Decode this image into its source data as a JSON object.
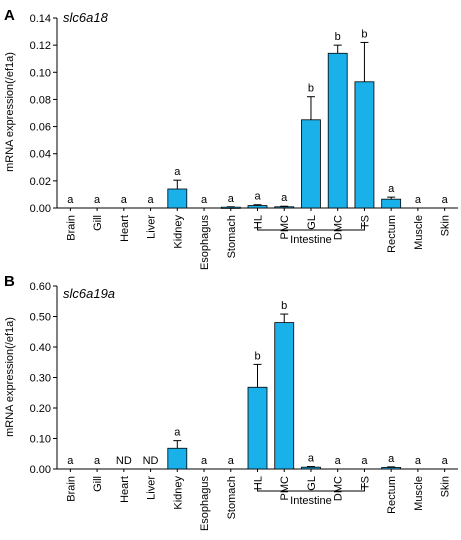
{
  "colors": {
    "bar": "#1ab0ea",
    "axis": "#000000"
  },
  "chart_data": [
    {
      "type": "bar",
      "panel": "A",
      "title": "slc6a18",
      "ylabel": "mRNA expression(/ef1a)",
      "ylim": [
        0,
        0.14
      ],
      "yticks": [
        "0.00",
        "0.02",
        "0.04",
        "0.06",
        "0.08",
        "0.10",
        "0.12",
        "0.14"
      ],
      "categories": [
        "Brain",
        "Gill",
        "Heart",
        "Liver",
        "Kidney",
        "Esophagus",
        "Stomach",
        "HL",
        "PMC",
        "GL",
        "DMC",
        "TS",
        "Rectum",
        "Muscle",
        "Skin"
      ],
      "values": [
        0,
        0,
        0,
        0,
        0.014,
        0,
        0.0006,
        0.0018,
        0.0009,
        0.065,
        0.114,
        0.093,
        0.0065,
        0,
        0
      ],
      "errors": [
        0,
        0,
        0,
        0,
        0.0065,
        0,
        0.0003,
        0.0006,
        0.0004,
        0.017,
        0.006,
        0.029,
        0.0015,
        0,
        0
      ],
      "labels": [
        "a",
        "a",
        "a",
        "a",
        "a",
        "a",
        "a",
        "a",
        "a",
        "b",
        "b",
        "b",
        "a",
        "a",
        "a"
      ],
      "group_label": "Intestine"
    },
    {
      "type": "bar",
      "panel": "B",
      "title": "slc6a19a",
      "ylabel": "mRNA expression(/ef1a)",
      "ylim": [
        0,
        0.6
      ],
      "yticks": [
        "0.00",
        "0.10",
        "0.20",
        "0.30",
        "0.40",
        "0.50",
        "0.60"
      ],
      "categories": [
        "Brain",
        "Gill",
        "Heart",
        "Liver",
        "Kidney",
        "Esophagus",
        "Stomach",
        "HL",
        "PMC",
        "GL",
        "DMC",
        "TS",
        "Rectum",
        "Muscle",
        "Skin"
      ],
      "values": [
        0,
        0,
        0,
        0,
        0.068,
        0,
        0,
        0.268,
        0.48,
        0.006,
        0,
        0,
        0.005,
        0,
        0
      ],
      "errors": [
        0,
        0,
        0,
        0,
        0.025,
        0,
        0,
        0.075,
        0.028,
        0.002,
        0,
        0,
        0.002,
        0,
        0
      ],
      "labels": [
        "a",
        "a",
        "ND",
        "ND",
        "a",
        "a",
        "a",
        "b",
        "b",
        "a",
        "a",
        "a",
        "a",
        "a",
        "a"
      ],
      "group_label": "Intestine"
    }
  ]
}
